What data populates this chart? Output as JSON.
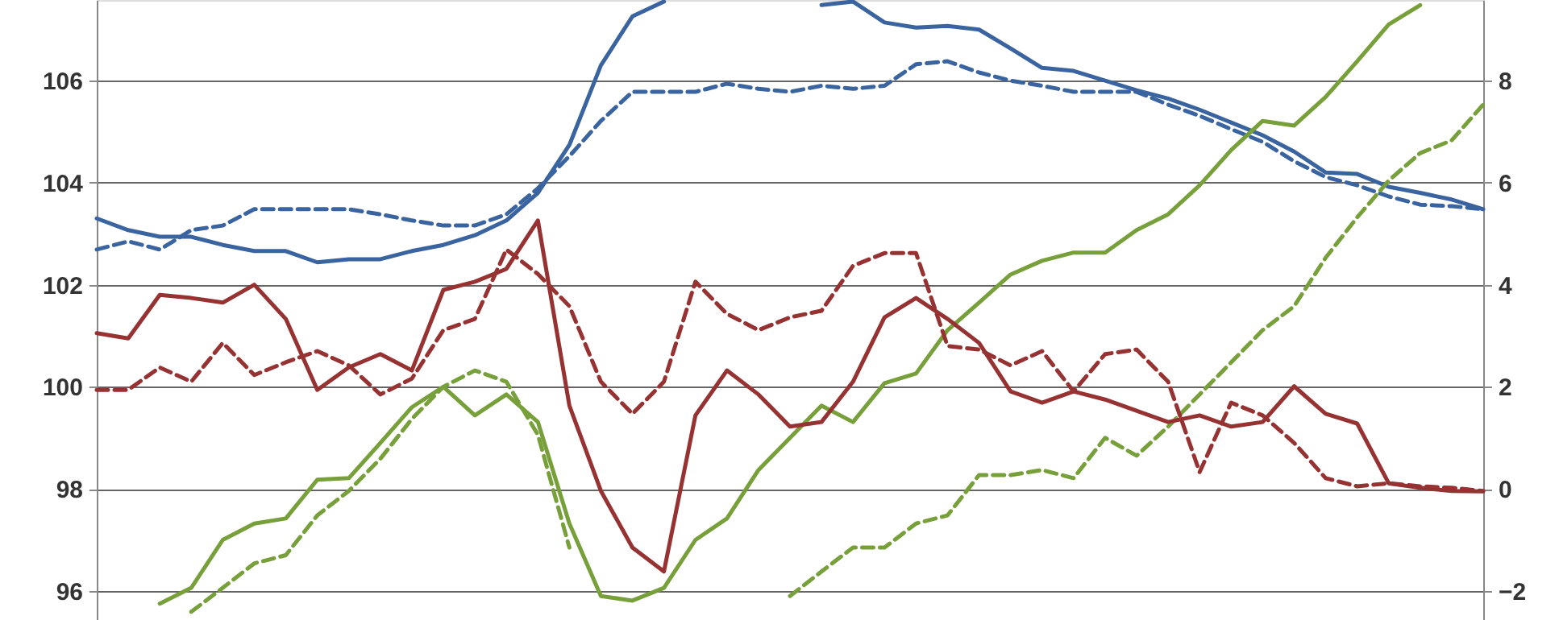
{
  "chart_data": {
    "type": "line",
    "categories": [
      null,
      null,
      null,
      null,
      null,
      null,
      null,
      null,
      null,
      null,
      null,
      null,
      null,
      null,
      null,
      null,
      null,
      null,
      null,
      null,
      null,
      null,
      null,
      null,
      null,
      null,
      null,
      null,
      null,
      null,
      null,
      null,
      null,
      null,
      null,
      null,
      null,
      null,
      null,
      null,
      null,
      null,
      null,
      null,
      null
    ],
    "series": [
      {
        "color": "#3a64a0",
        "line_style": "solid",
        "axis": "y",
        "values": [
          103.3,
          103.07,
          102.94,
          102.94,
          102.78,
          102.66,
          102.66,
          102.44,
          102.5,
          102.5,
          102.66,
          102.78,
          102.97,
          103.26,
          103.8,
          104.74,
          106.3,
          107.26,
          107.55,
          null,
          null,
          null,
          null,
          107.48,
          107.55,
          107.14,
          107.04,
          107.07,
          107.0,
          106.63,
          106.25,
          106.19,
          106.0,
          105.81,
          105.65,
          105.43,
          105.18,
          104.93,
          104.61,
          104.2,
          104.17,
          103.92,
          103.8,
          103.67,
          103.48
        ]
      },
      {
        "color": "#3a64a0",
        "line_style": "dashed",
        "axis": "y",
        "values": [
          102.69,
          102.85,
          102.69,
          103.07,
          103.16,
          103.48,
          103.48,
          103.48,
          103.48,
          103.38,
          103.26,
          103.16,
          103.16,
          103.38,
          103.89,
          104.52,
          105.21,
          105.78,
          105.78,
          105.78,
          105.94,
          105.84,
          105.78,
          105.9,
          105.84,
          105.9,
          106.32,
          106.38,
          106.16,
          106.0,
          105.9,
          105.78,
          105.78,
          105.78,
          105.53,
          105.31,
          105.05,
          104.8,
          104.42,
          104.11,
          103.95,
          103.73,
          103.57,
          103.54,
          103.48
        ]
      },
      {
        "color": "#963232",
        "line_style": "solid",
        "axis": "y2",
        "values": [
          3.05,
          2.95,
          3.8,
          3.74,
          3.65,
          4.0,
          3.33,
          1.94,
          2.38,
          2.64,
          2.32,
          3.9,
          4.06,
          4.31,
          5.26,
          1.63,
          -0.04,
          -1.15,
          -1.62,
          1.44,
          2.32,
          1.85,
          1.22,
          1.31,
          2.1,
          3.36,
          3.74,
          3.33,
          2.86,
          1.91,
          1.69,
          1.91,
          1.75,
          1.53,
          1.31,
          1.44,
          1.22,
          1.31,
          2.01,
          1.47,
          1.28,
          0.11,
          0.02,
          -0.04,
          -0.05
        ]
      },
      {
        "color": "#963232",
        "line_style": "dashed",
        "axis": "y2",
        "values": [
          1.94,
          1.94,
          2.38,
          2.1,
          2.86,
          2.23,
          2.48,
          2.7,
          2.42,
          1.85,
          2.16,
          3.11,
          3.33,
          4.69,
          4.21,
          3.58,
          2.1,
          1.47,
          2.1,
          4.06,
          3.43,
          3.11,
          3.36,
          3.49,
          4.37,
          4.62,
          4.62,
          2.8,
          2.73,
          2.42,
          2.7,
          1.91,
          2.64,
          2.73,
          2.1,
          0.33,
          1.69,
          1.44,
          0.9,
          0.21,
          0.05,
          0.11,
          0.05,
          0.02,
          -0.04
        ]
      },
      {
        "color": "#77a03a",
        "line_style": "solid",
        "axis": "y",
        "values": [
          null,
          null,
          95.75,
          96.06,
          97.0,
          97.32,
          97.42,
          98.18,
          98.21,
          98.9,
          99.6,
          100.0,
          99.44,
          99.85,
          99.31,
          97.32,
          95.9,
          95.81,
          96.06,
          97.0,
          97.42,
          98.37,
          99.0,
          99.63,
          99.31,
          100.07,
          100.26,
          101.11,
          101.65,
          102.2,
          102.47,
          102.63,
          102.63,
          103.07,
          103.38,
          103.95,
          104.64,
          105.21,
          105.12,
          105.68,
          106.38,
          107.1,
          107.48,
          null,
          null
        ]
      },
      {
        "color": "#77a03a",
        "line_style": "dashed",
        "axis": "y",
        "values": [
          null,
          null,
          null,
          95.59,
          96.06,
          96.54,
          96.7,
          97.48,
          97.96,
          98.59,
          99.37,
          100.0,
          100.32,
          100.1,
          99.06,
          96.85,
          null,
          null,
          null,
          null,
          null,
          null,
          95.9,
          96.38,
          96.85,
          96.85,
          97.32,
          97.48,
          98.27,
          98.27,
          98.37,
          98.21,
          99.0,
          98.65,
          99.22,
          99.85,
          100.48,
          101.11,
          101.58,
          102.53,
          103.32,
          104.04,
          104.58,
          104.83,
          105.53
        ]
      }
    ],
    "ylim": [
      95.43,
      107.58
    ],
    "yticks": [
      96,
      98,
      100,
      102,
      104,
      106
    ],
    "y2lim": [
      -2.57,
      9.58
    ],
    "y2ticks": [
      -2,
      0,
      2,
      4,
      6,
      8
    ],
    "grid": "y",
    "marker": "none"
  }
}
